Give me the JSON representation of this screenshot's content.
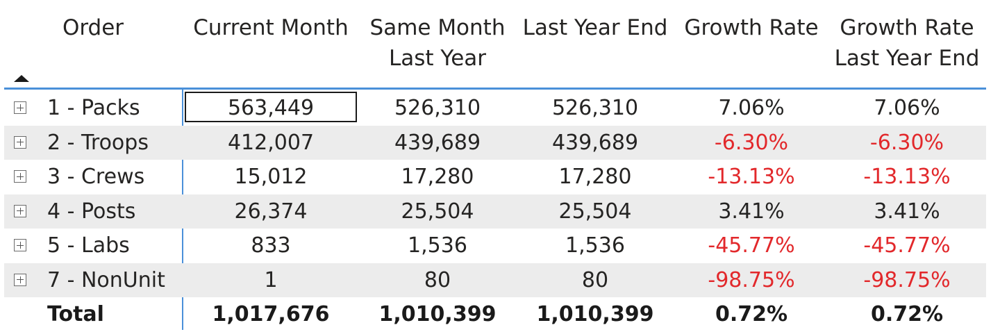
{
  "header": {
    "order": "Order",
    "current_month": "Current Month",
    "same_month_last_year_1": "Same Month",
    "same_month_last_year_2": "Last Year",
    "last_year_end": "Last Year End",
    "growth_rate": "Growth Rate",
    "growth_rate_lye_1": "Growth Rate",
    "growth_rate_lye_2": "Last Year End"
  },
  "rows": [
    {
      "order": "1 - Packs",
      "current_month": "563,449",
      "same_month_last_year": "526,310",
      "last_year_end": "526,310",
      "growth_rate": "7.06%",
      "growth_rate_lye": "7.06%"
    },
    {
      "order": "2 - Troops",
      "current_month": "412,007",
      "same_month_last_year": "439,689",
      "last_year_end": "439,689",
      "growth_rate": "-6.30%",
      "growth_rate_lye": "-6.30%"
    },
    {
      "order": "3 - Crews",
      "current_month": "15,012",
      "same_month_last_year": "17,280",
      "last_year_end": "17,280",
      "growth_rate": "-13.13%",
      "growth_rate_lye": "-13.13%"
    },
    {
      "order": "4 - Posts",
      "current_month": "26,374",
      "same_month_last_year": "25,504",
      "last_year_end": "25,504",
      "growth_rate": "3.41%",
      "growth_rate_lye": "3.41%"
    },
    {
      "order": "5 - Labs",
      "current_month": "833",
      "same_month_last_year": "1,536",
      "last_year_end": "1,536",
      "growth_rate": "-45.77%",
      "growth_rate_lye": "-45.77%"
    },
    {
      "order": "7 - NonUnit",
      "current_month": "1",
      "same_month_last_year": "80",
      "last_year_end": "80",
      "growth_rate": "-98.75%",
      "growth_rate_lye": "-98.75%"
    }
  ],
  "total": {
    "order": "Total",
    "current_month": "1,017,676",
    "same_month_last_year": "1,010,399",
    "last_year_end": "1,010,399",
    "growth_rate": "0.72%",
    "growth_rate_lye": "0.72%"
  },
  "colors": {
    "negative": "#e2282b",
    "header_line": "#4a90d9",
    "shaded_row": "#ececec"
  },
  "icons": {
    "sort": "sort-ascending-icon",
    "expand": "expand-plus-icon"
  }
}
